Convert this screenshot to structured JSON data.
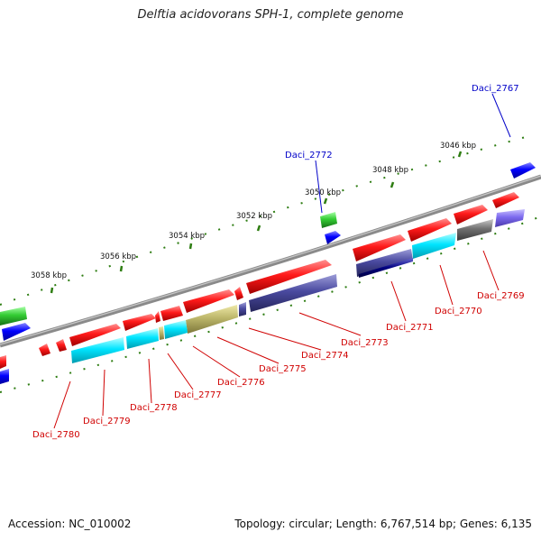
{
  "title": "Delftia acidovorans SPH-1, complete genome",
  "footer": {
    "accession": "Accession: NC_010002",
    "topology": "Topology: circular; Length: 6,767,514 bp; Genes: 6,135"
  },
  "colors": {
    "backbone": "#8a8a8a",
    "tick": "#2e7d12",
    "label_red": "#d00000",
    "label_blue": "#0000c8",
    "forward_cds": "#ff0000",
    "reverse_cds": "#ff0000",
    "trna": "#33cc33",
    "rrna": "#0000ff",
    "cyan": "#00e5ff",
    "slate": "#4a4aa0",
    "olive": "#bdb76b",
    "gray": "#707070",
    "lavender": "#7b68ee",
    "navy": "#000080"
  },
  "ticks": [
    "3046 kbp",
    "3048 kbp",
    "3050 kbp",
    "3052 kbp",
    "3054 kbp",
    "3056 kbp",
    "3058 kbp"
  ],
  "genes": [
    {
      "id": "Daci_2767",
      "color": "blue"
    },
    {
      "id": "Daci_2769",
      "color": "red"
    },
    {
      "id": "Daci_2770",
      "color": "red"
    },
    {
      "id": "Daci_2771",
      "color": "red"
    },
    {
      "id": "Daci_2772",
      "color": "blue"
    },
    {
      "id": "Daci_2773",
      "color": "red"
    },
    {
      "id": "Daci_2774",
      "color": "red"
    },
    {
      "id": "Daci_2775",
      "color": "red"
    },
    {
      "id": "Daci_2776",
      "color": "red"
    },
    {
      "id": "Daci_2777",
      "color": "red"
    },
    {
      "id": "Daci_2778",
      "color": "red"
    },
    {
      "id": "Daci_2779",
      "color": "red"
    },
    {
      "id": "Daci_2780",
      "color": "red"
    }
  ]
}
